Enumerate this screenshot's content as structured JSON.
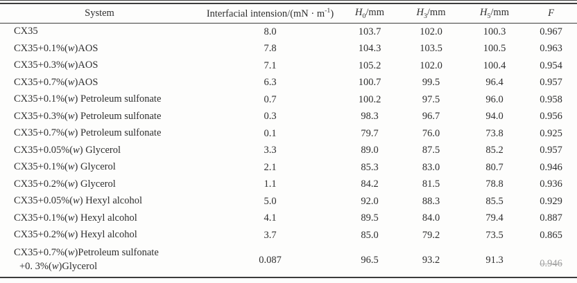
{
  "colors": {
    "background": "#fdfdfc",
    "text": "#2e2e2e",
    "rule": "#3c3c3c",
    "faded_value": "#9b9b9b"
  },
  "table": {
    "columns": {
      "system": {
        "label": "System"
      },
      "tension": {
        "pre": "Interfacial intension/(mN · m",
        "sup": "-1",
        "post": ")"
      },
      "h0": {
        "symbol": "H",
        "sub": "0",
        "unit": "/mm"
      },
      "h3": {
        "symbol": "H",
        "sub": "3",
        "unit": "/mm"
      },
      "h5": {
        "symbol": "H",
        "sub": "5",
        "unit": "/mm"
      },
      "f": {
        "label": "F"
      }
    },
    "rows": [
      {
        "system": "CX35",
        "tension": "8.0",
        "h0": "103.7",
        "h3": "102.0",
        "h5": "100.3",
        "f": "0.967"
      },
      {
        "system": "CX35+0.1%(w)AOS",
        "tension": "7.8",
        "h0": "104.3",
        "h3": "103.5",
        "h5": "100.5",
        "f": "0.963"
      },
      {
        "system": "CX35+0.3%(w)AOS",
        "tension": "7.1",
        "h0": "105.2",
        "h3": "102.0",
        "h5": "100.4",
        "f": "0.954"
      },
      {
        "system": "CX35+0.7%(w)AOS",
        "tension": "6.3",
        "h0": "100.7",
        "h3": "99.5",
        "h5": "96.4",
        "f": "0.957"
      },
      {
        "system": "CX35+0.1%(w) Petroleum sulfonate",
        "tension": "0.7",
        "h0": "100.2",
        "h3": "97.5",
        "h5": "96.0",
        "f": "0.958"
      },
      {
        "system": "CX35+0.3%(w) Petroleum sulfonate",
        "tension": "0.3",
        "h0": "98.3",
        "h3": "96.7",
        "h5": "94.0",
        "f": "0.956"
      },
      {
        "system": "CX35+0.7%(w) Petroleum sulfonate",
        "tension": "0.1",
        "h0": "79.7",
        "h3": "76.0",
        "h5": "73.8",
        "f": "0.925"
      },
      {
        "system": "CX35+0.05%(w) Glycerol",
        "tension": "3.3",
        "h0": "89.0",
        "h3": "87.5",
        "h5": "85.2",
        "f": "0.957"
      },
      {
        "system": "CX35+0.1%(w) Glycerol",
        "tension": "2.1",
        "h0": "85.3",
        "h3": "83.0",
        "h5": "80.7",
        "f": "0.946"
      },
      {
        "system": "CX35+0.2%(w) Glycerol",
        "tension": "1.1",
        "h0": "84.2",
        "h3": "81.5",
        "h5": "78.8",
        "f": "0.936"
      },
      {
        "system": "CX35+0.05%(w) Hexyl alcohol",
        "tension": "5.0",
        "h0": "92.0",
        "h3": "88.3",
        "h5": "85.5",
        "f": "0.929"
      },
      {
        "system": "CX35+0.1%(w) Hexyl alcohol",
        "tension": "4.1",
        "h0": "89.5",
        "h3": "84.0",
        "h5": "79.4",
        "f": "0.887"
      },
      {
        "system": "CX35+0.2%(w) Hexyl alcohol",
        "tension": "3.7",
        "h0": "85.0",
        "h3": "79.2",
        "h5": "73.5",
        "f": "0.865"
      },
      {
        "system": "CX35+0.7%(w)Petroleum sulfonate",
        "system_line2": "+0. 3%(w)Glycerol",
        "tension": "0.087",
        "h0": "96.5",
        "h3": "93.2",
        "h5": "91.3",
        "f": "0.946",
        "f_faded": true
      }
    ]
  }
}
